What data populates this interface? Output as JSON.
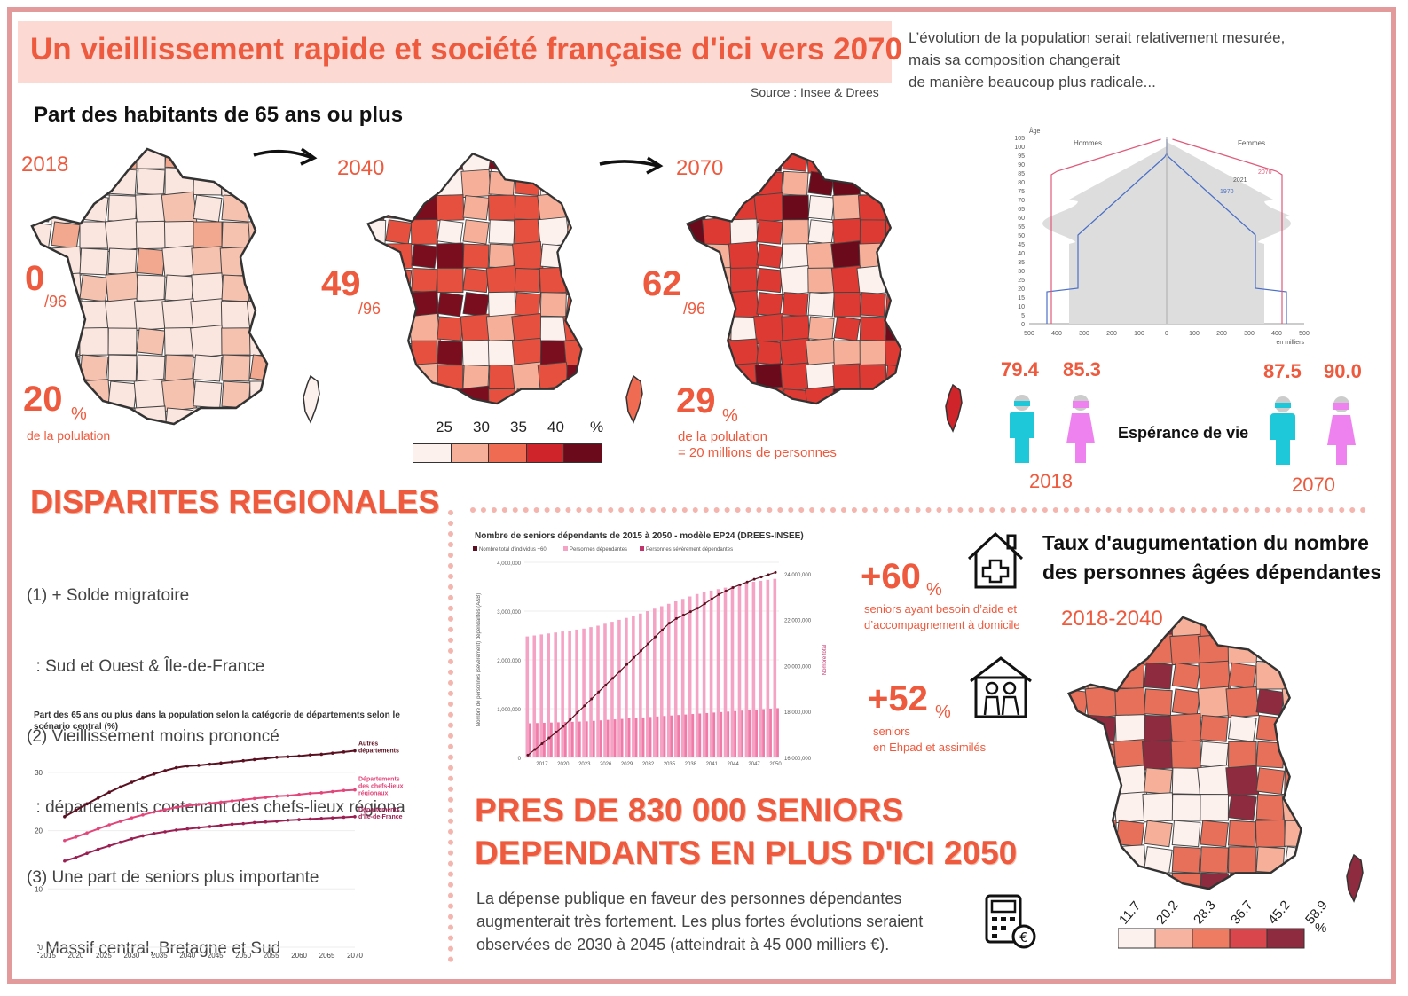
{
  "header": {
    "title": "Un vieillissement rapide et société française d'ici vers 2070",
    "source": "Source : Insee & Drees",
    "intro": "L’évolution de la population serait relativement mesurée,\nmais sa composition  changerait\nde manière beaucoup plus radicale..."
  },
  "section65": {
    "heading": "Part des habitants de 65 ans ou plus",
    "maps": [
      {
        "year": "2018",
        "count": "0",
        "total": "/96",
        "pct": "20",
        "pct_sign": "%",
        "note": "de la polulation"
      },
      {
        "year": "2040",
        "count": "49",
        "total": "/96"
      },
      {
        "year": "2070",
        "count": "62",
        "total": "/96",
        "pct": "29",
        "pct_sign": "%",
        "note": "de la polulation\n= 20 millions de personnes"
      }
    ],
    "scale": {
      "labels": [
        "25",
        "30",
        "35",
        "40"
      ],
      "unit": "%",
      "colors": [
        "#fdf1ee",
        "#f6b09a",
        "#ef6c52",
        "#d0242b",
        "#6a0a1a"
      ]
    }
  },
  "pyramid": {
    "ylabel": "Âge",
    "left_label": "Hommes",
    "right_label": "Femmes",
    "yticks": [
      "105",
      "100",
      "95",
      "90",
      "85",
      "80",
      "75",
      "70",
      "65",
      "60",
      "55",
      "50",
      "45",
      "40",
      "35",
      "30",
      "25",
      "20",
      "15",
      "10",
      "5",
      "0"
    ],
    "xticks": [
      "500",
      "400",
      "300",
      "200",
      "100",
      "0",
      "100",
      "200",
      "300",
      "400",
      "500"
    ],
    "xunit": "en milliers",
    "series": [
      "2070",
      "2021",
      "1970"
    ]
  },
  "life": {
    "values": [
      "79.4",
      "85.3",
      "87.5",
      "90.0"
    ],
    "label": "Espérance de vie",
    "years": [
      "2018",
      "2070"
    ],
    "colors": {
      "male": "#1ec8d8",
      "female": "#ee82ee",
      "head": "#cccccc"
    }
  },
  "disparites": {
    "title": "DISPARITES REGIONALES",
    "lines": [
      "(1) + Solde migratoire",
      "  : Sud et Ouest & Île-de-France",
      "(2) Vieillissement moins prononcé",
      "  : départements contenant des chefs-lieux régiona",
      "(3) Une part de seniors plus importante",
      "  : Massif central, Bretagne et Sud"
    ]
  },
  "line_chart": {
    "title": "Part des 65 ans ou plus dans la population selon la catégorie de départements selon le scénario central (%)",
    "xticks": [
      "2015",
      "2020",
      "2025",
      "2030",
      "2035",
      "2040",
      "2045",
      "2050",
      "2055",
      "2060",
      "2065",
      "2070"
    ],
    "yticks": [
      "0",
      "10",
      "20",
      "30"
    ],
    "series_labels": [
      "Autres départements",
      "Départements des chefs-lieux régionaux",
      "Départements d'Île-de-France"
    ]
  },
  "seniors_chart": {
    "title": "Nombre de seniors dépendants de 2015 à 2050 - modèle EP24 (DREES-INSEE)",
    "legend": [
      "Nombre total d'individus +60",
      "Personnes dépendantes",
      "Personnes sévèrement dépendantes"
    ],
    "yleft": [
      "4,000,000",
      "3,000,000",
      "2,000,000",
      "1,000,000",
      "0"
    ],
    "yright": [
      "24,000,000",
      "22,000,000",
      "20,000,000",
      "18,000,000",
      "16,000,000"
    ],
    "ylabel_left": "Nombre de personnes (sévèrement) dépendantes (A&B)",
    "ylabel_right": "Nombre total",
    "xticks": [
      "2017",
      "2020",
      "2023",
      "2026",
      "2029",
      "2032",
      "2035",
      "2038",
      "2041",
      "2044",
      "2047",
      "2050"
    ]
  },
  "chart_data": [
    {
      "type": "line",
      "title": "Part des 65 ans ou plus dans la population selon la catégorie de départements selon le scénario central (%)",
      "x": [
        2018,
        2020,
        2022,
        2024,
        2026,
        2028,
        2030,
        2032,
        2034,
        2036,
        2038,
        2040,
        2042,
        2044,
        2046,
        2048,
        2050,
        2052,
        2054,
        2056,
        2058,
        2060,
        2062,
        2064,
        2066,
        2068,
        2070
      ],
      "series": [
        {
          "name": "Autres départements",
          "color": "#5a1020",
          "values": [
            22.4,
            23.5,
            24.6,
            25.6,
            26.6,
            27.5,
            28.3,
            29.1,
            29.7,
            30.3,
            30.8,
            31.1,
            31.2,
            31.4,
            31.6,
            31.8,
            32.0,
            32.2,
            32.4,
            32.6,
            32.7,
            32.8,
            33.0,
            33.1,
            33.3,
            33.5,
            33.7
          ]
        },
        {
          "name": "Départements des chefs-lieux régionaux",
          "color": "#e2457a",
          "values": [
            18.3,
            18.9,
            19.6,
            20.3,
            21.0,
            21.6,
            22.2,
            22.7,
            23.2,
            23.6,
            24.0,
            24.3,
            24.5,
            24.7,
            24.9,
            25.1,
            25.3,
            25.5,
            25.7,
            25.9,
            26.0,
            26.2,
            26.4,
            26.5,
            26.7,
            26.9,
            27.0
          ]
        },
        {
          "name": "Départements d'Île-de-France",
          "color": "#9a1e52",
          "values": [
            14.8,
            15.4,
            16.1,
            16.8,
            17.4,
            18.0,
            18.6,
            19.1,
            19.5,
            19.8,
            20.1,
            20.3,
            20.5,
            20.7,
            20.9,
            21.1,
            21.2,
            21.4,
            21.5,
            21.6,
            21.8,
            21.9,
            22.0,
            22.1,
            22.2,
            22.3,
            22.4
          ]
        }
      ],
      "ylim": [
        0,
        35
      ],
      "xlim": [
        2015,
        2070
      ]
    },
    {
      "type": "bar",
      "title": "Nombre de seniors dépendants de 2015 à 2050 - modèle EP24 (DREES-INSEE)",
      "categories": [
        2015,
        2016,
        2017,
        2018,
        2019,
        2020,
        2021,
        2022,
        2023,
        2024,
        2025,
        2026,
        2027,
        2028,
        2029,
        2030,
        2031,
        2032,
        2033,
        2034,
        2035,
        2036,
        2037,
        2038,
        2039,
        2040,
        2041,
        2042,
        2043,
        2044,
        2045,
        2046,
        2047,
        2048,
        2049,
        2050
      ],
      "series": [
        {
          "name": "Personnes dépendantes",
          "color": "#f5a3c4",
          "values": [
            2480000,
            2500000,
            2520000,
            2540000,
            2560000,
            2580000,
            2600000,
            2620000,
            2640000,
            2670000,
            2700000,
            2740000,
            2780000,
            2820000,
            2860000,
            2900000,
            2950000,
            3000000,
            3050000,
            3100000,
            3150000,
            3200000,
            3250000,
            3300000,
            3350000,
            3390000,
            3420000,
            3450000,
            3480000,
            3510000,
            3540000,
            3570000,
            3600000,
            3620000,
            3640000,
            3660000
          ]
        },
        {
          "name": "Personnes sévèrement dépendantes",
          "color": "#f07aa8",
          "values": [
            700000,
            705000,
            710000,
            715000,
            720000,
            725000,
            730000,
            735000,
            740000,
            750000,
            760000,
            770000,
            780000,
            790000,
            800000,
            810000,
            820000,
            830000,
            840000,
            850000,
            860000,
            870000,
            880000,
            890000,
            900000,
            910000,
            920000,
            930000,
            940000,
            950000,
            960000,
            970000,
            980000,
            990000,
            1000000,
            1010000
          ]
        },
        {
          "name": "Nombre total d'individus +60",
          "color": "#5a1020",
          "axis": "right",
          "values": [
            16100000,
            16350000,
            16600000,
            16850000,
            17100000,
            17350000,
            17650000,
            17950000,
            18250000,
            18550000,
            18850000,
            19150000,
            19450000,
            19750000,
            20050000,
            20350000,
            20650000,
            20950000,
            21250000,
            21550000,
            21850000,
            22050000,
            22200000,
            22350000,
            22500000,
            22700000,
            22900000,
            23100000,
            23250000,
            23400000,
            23520000,
            23640000,
            23760000,
            23860000,
            23960000,
            24060000
          ]
        }
      ],
      "ylim": [
        0,
        4000000
      ],
      "y2lim": [
        16000000,
        24500000
      ]
    }
  ],
  "increase": [
    {
      "value": "+60",
      "sign": "%",
      "note": "seniors ayant besoin d’aide et\nd’accompagnement à domicile"
    },
    {
      "value": "+52",
      "sign": "%",
      "note": "seniors\nen Ehpad et assimilés"
    }
  ],
  "taux": {
    "title": "Taux d'augumentation du nombre\ndes personnes âgées dépendantes",
    "period": "2018-2040",
    "scale_labels": [
      "11.7",
      "20.2",
      "28.3",
      "36.7",
      "45.2",
      "58.9"
    ],
    "unit": "%",
    "colors": [
      "#fdf1ee",
      "#f6b4a0",
      "#ee7c63",
      "#d9474c",
      "#8f2b3e"
    ]
  },
  "pres": {
    "title_lines": [
      "PRES DE 830 000 SENIORS",
      "DEPENDANTS EN PLUS D'ICI 2050"
    ],
    "text": "La dépense publique en faveur des personnes dépendantes augmenterait très fortement. Les plus fortes évolutions seraient observées de 2030 à 2045 (atteindrait à 45 000 milliers €)."
  }
}
